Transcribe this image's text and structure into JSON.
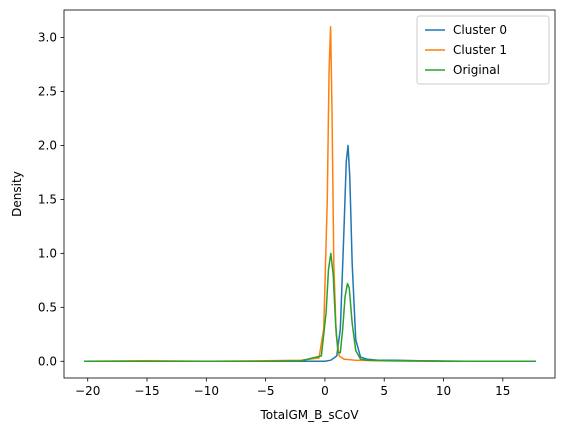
{
  "chart_data": {
    "type": "line",
    "title": "",
    "xlabel": "TotalGM_B_sCoV",
    "ylabel": "Density",
    "xlim": [
      -22.0,
      19.4
    ],
    "ylim": [
      -0.155,
      3.255
    ],
    "xticks": [
      -20,
      -15,
      -10,
      -5,
      0,
      5,
      10,
      15
    ],
    "yticks": [
      0.0,
      0.5,
      1.0,
      1.5,
      2.0,
      2.5,
      3.0
    ],
    "xtick_labels": [
      "−20",
      "−15",
      "−10",
      "−5",
      "0",
      "5",
      "10",
      "15"
    ],
    "ytick_labels": [
      "0.0",
      "0.5",
      "1.0",
      "1.5",
      "2.0",
      "2.5",
      "3.0"
    ],
    "grid": false,
    "legend_position": "top-right",
    "series": [
      {
        "name": "Cluster 0",
        "color": "#1f77b4",
        "x": [
          -20.3,
          -15,
          -10,
          -5,
          -2,
          0,
          0.5,
          1.0,
          1.3,
          1.6,
          1.8,
          1.95,
          2.1,
          2.3,
          2.6,
          3.0,
          3.5,
          4.5,
          6,
          8,
          10,
          12
        ],
        "y": [
          0.0,
          0.0,
          0.0,
          0.0,
          0.0,
          0.0,
          0.01,
          0.05,
          0.3,
          1.2,
          1.85,
          2.0,
          1.7,
          0.9,
          0.2,
          0.04,
          0.02,
          0.01,
          0.01,
          0.005,
          0.002,
          0.0
        ]
      },
      {
        "name": "Cluster 1",
        "color": "#ff7f0e",
        "x": [
          -20.3,
          -15,
          -10,
          -5,
          -2,
          -0.5,
          -0.1,
          0.2,
          0.35,
          0.48,
          0.6,
          0.75,
          0.95,
          1.2,
          1.6,
          2.5,
          5,
          10,
          12
        ],
        "y": [
          0.0,
          0.005,
          0.0,
          0.005,
          0.01,
          0.03,
          0.3,
          1.5,
          2.7,
          3.1,
          2.3,
          0.9,
          0.25,
          0.05,
          0.02,
          0.01,
          0.005,
          0.0,
          0.0
        ]
      },
      {
        "name": "Original",
        "color": "#2ca02c",
        "x": [
          -20.3,
          -15,
          -10,
          -5,
          -2,
          -0.3,
          0.1,
          0.3,
          0.5,
          0.7,
          0.9,
          1.1,
          1.3,
          1.5,
          1.7,
          1.9,
          2.05,
          2.3,
          2.6,
          3.0,
          3.5,
          5,
          10,
          15,
          17.8
        ],
        "y": [
          0.0,
          0.0,
          0.0,
          0.0,
          0.005,
          0.05,
          0.45,
          0.85,
          1.0,
          0.8,
          0.35,
          0.08,
          0.08,
          0.3,
          0.6,
          0.72,
          0.68,
          0.35,
          0.1,
          0.02,
          0.01,
          0.005,
          0.0,
          0.0,
          0.0
        ]
      }
    ]
  }
}
